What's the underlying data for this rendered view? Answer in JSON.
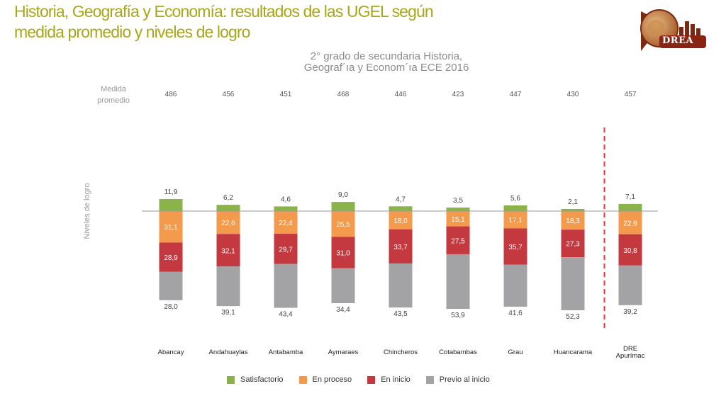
{
  "slide": {
    "title_line1": "Historia, Geografía y Economía: resultados de las UGEL según",
    "title_line2": "medida promedio y niveles de  logro",
    "logo_text": "DREA"
  },
  "colors": {
    "satisfactorio": "#8ab34c",
    "en_proceso": "#f39a4d",
    "en_inicio": "#c4383f",
    "previo": "#a3a3a6",
    "title": "#a8a61a",
    "reference_line": "#e03a3a"
  },
  "chart_data": {
    "type": "bar",
    "stacked": true,
    "title_line1": "2° grado de secundaria  Historia,",
    "title_line2": "Geograf´ıa  y Econom´ıa ECE 2016",
    "ylabel": "Niveles de logro",
    "mean_label_line1": "Medida",
    "mean_label_line2": "promedio",
    "categories": [
      "Abancay",
      "Andahuaylas",
      "Antabamba",
      "Aymaraes",
      "Chincheros",
      "Cotabambas",
      "Grau",
      "Huancarama",
      "DRE Apurímac"
    ],
    "category_labels": [
      [
        "Abancay"
      ],
      [
        "Andahuaylas"
      ],
      [
        "Antabamba"
      ],
      [
        "Aymaraes"
      ],
      [
        "Chincheros"
      ],
      [
        "Cotabambas"
      ],
      [
        "Grau"
      ],
      [
        "Huancarama"
      ],
      [
        "DRE",
        "Apurímac"
      ]
    ],
    "mean_scores": [
      "486",
      "456",
      "451",
      "468",
      "446",
      "423",
      "447",
      "430",
      "457"
    ],
    "series": [
      {
        "name": "Satisfactorio",
        "key": "satisfactorio",
        "values": [
          11.9,
          6.2,
          4.6,
          9.0,
          4.7,
          3.5,
          5.6,
          2.1,
          7.1
        ],
        "labels": [
          "11,9",
          "6,2",
          "4,6",
          "9,0",
          "4,7",
          "3,5",
          "5,6",
          "2,1",
          "7,1"
        ]
      },
      {
        "name": "En proceso",
        "key": "en_proceso",
        "values": [
          31.1,
          22.6,
          22.4,
          25.5,
          18.0,
          15.1,
          17.1,
          18.3,
          22.9
        ],
        "labels": [
          "31,1",
          "22,6",
          "22,4",
          "25,5",
          "18,0",
          "15,1",
          "17,1",
          "18,3",
          "22,9"
        ]
      },
      {
        "name": "En inicio",
        "key": "en_inicio",
        "values": [
          28.9,
          32.1,
          29.7,
          31.0,
          33.7,
          27.5,
          35.7,
          27.3,
          30.8
        ],
        "labels": [
          "28,9",
          "32,1",
          "29,7",
          "31,0",
          "33,7",
          "27,5",
          "35,7",
          "27,3",
          "30,8"
        ]
      },
      {
        "name": "Previo al inicio",
        "key": "previo",
        "values": [
          28.0,
          39.1,
          43.4,
          34.4,
          43.5,
          53.9,
          41.6,
          52.3,
          39.2
        ],
        "labels": [
          "28,0",
          "39,1",
          "43,4",
          "34,4",
          "43,5",
          "53,9",
          "41,6",
          "52,3",
          "39,2"
        ]
      }
    ],
    "baseline": "between Satisfactorio and En proceso",
    "separator_before_category": "DRE Apurímac"
  }
}
